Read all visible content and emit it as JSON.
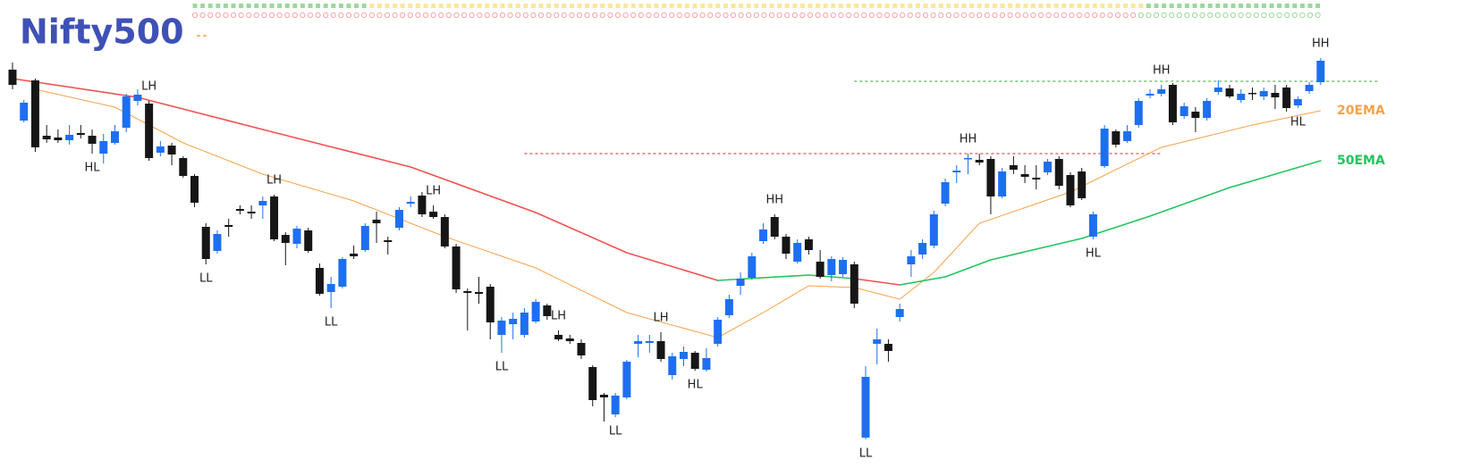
{
  "chart_data": {
    "type": "candlestick",
    "title": "Nifty500",
    "ylim": [
      0,
      500
    ],
    "up_color": "#1e6ff0",
    "down_color": "#161616",
    "open": [
      422,
      365,
      410,
      348,
      346,
      343,
      351,
      348,
      328,
      340,
      357,
      387,
      384,
      329,
      337,
      323,
      303,
      246,
      219,
      248,
      266,
      263,
      270,
      280,
      237,
      227,
      242,
      200,
      173,
      179,
      216,
      220,
      254,
      231,
      245,
      272,
      281,
      263,
      257,
      224,
      174,
      173,
      179,
      125,
      137,
      125,
      140,
      158,
      125,
      121,
      116,
      89,
      58,
      36,
      55,
      115,
      116,
      118,
      80,
      98,
      105,
      86,
      115,
      147,
      180,
      189,
      230,
      257,
      235,
      207,
      232,
      207,
      192,
      193,
      204,
      10,
      115,
      115,
      145,
      204,
      215,
      225,
      272,
      307,
      322,
      321,
      322,
      280,
      315,
      305,
      301,
      307,
      322,
      304,
      308,
      235,
      314,
      353,
      342,
      360,
      393,
      395,
      405,
      370,
      375,
      368,
      397,
      401,
      388,
      396,
      392,
      396,
      402,
      382,
      398,
      408
    ],
    "high": [
      430,
      388,
      412,
      360,
      355,
      360,
      360,
      355,
      350,
      360,
      395,
      400,
      387,
      342,
      340,
      325,
      305,
      250,
      242,
      255,
      270,
      270,
      280,
      282,
      240,
      247,
      245,
      205,
      190,
      212,
      225,
      250,
      263,
      235,
      268,
      280,
      285,
      270,
      260,
      227,
      177,
      190,
      182,
      145,
      150,
      155,
      165,
      160,
      130,
      125,
      120,
      91,
      60,
      60,
      97,
      125,
      125,
      128,
      105,
      112,
      107,
      110,
      145,
      170,
      195,
      217,
      250,
      260,
      238,
      232,
      235,
      220,
      213,
      212,
      207,
      90,
      132,
      120,
      160,
      220,
      232,
      264,
      300,
      315,
      328,
      328,
      325,
      312,
      325,
      315,
      315,
      322,
      325,
      307,
      312,
      263,
      360,
      355,
      360,
      390,
      400,
      405,
      407,
      385,
      380,
      390,
      410,
      405,
      400,
      402,
      402,
      405,
      405,
      392,
      408,
      435
    ],
    "low": [
      400,
      363,
      330,
      340,
      340,
      338,
      345,
      328,
      317,
      338,
      352,
      382,
      320,
      325,
      315,
      301,
      268,
      204,
      216,
      235,
      260,
      255,
      255,
      230,
      203,
      222,
      217,
      169,
      155,
      177,
      210,
      218,
      228,
      215,
      242,
      268,
      257,
      255,
      222,
      172,
      130,
      160,
      120,
      105,
      120,
      122,
      138,
      142,
      118,
      115,
      98,
      45,
      28,
      33,
      53,
      100,
      105,
      95,
      75,
      90,
      85,
      84,
      112,
      144,
      170,
      187,
      227,
      232,
      210,
      205,
      215,
      188,
      185,
      190,
      155,
      8,
      92,
      95,
      140,
      190,
      210,
      222,
      269,
      295,
      305,
      315,
      260,
      278,
      305,
      295,
      288,
      304,
      288,
      268,
      276,
      232,
      312,
      335,
      340,
      357,
      390,
      392,
      360,
      367,
      352,
      365,
      394,
      390,
      385,
      388,
      388,
      378,
      375,
      379,
      395,
      405
    ],
    "close": [
      405,
      385,
      335,
      344,
      343,
      349,
      349,
      339,
      342,
      353,
      392,
      394,
      323,
      336,
      327,
      303,
      273,
      210,
      238,
      246,
      264,
      261,
      275,
      232,
      228,
      244,
      219,
      171,
      182,
      210,
      213,
      247,
      250,
      229,
      265,
      274,
      260,
      257,
      224,
      176,
      172,
      171,
      139,
      141,
      143,
      150,
      162,
      146,
      120,
      118,
      102,
      52,
      55,
      57,
      95,
      118,
      118,
      98,
      101,
      106,
      87,
      99,
      142,
      165,
      188,
      213,
      243,
      235,
      216,
      228,
      220,
      190,
      210,
      209,
      160,
      78,
      120,
      107,
      154,
      213,
      228,
      260,
      296,
      309,
      323,
      318,
      280,
      308,
      310,
      302,
      299,
      319,
      292,
      270,
      278,
      260,
      356,
      338,
      353,
      387,
      395,
      400,
      363,
      381,
      368,
      387,
      402,
      392,
      395,
      395,
      398,
      391,
      379,
      389,
      405,
      432
    ],
    "series": [
      {
        "name": "20EMA",
        "color": "#f7a24a",
        "x": [
          2,
          9,
          15,
          22,
          30,
          38,
          46,
          54,
          62,
          66,
          70,
          74,
          78,
          81,
          85,
          93,
          101,
          109,
          115
        ],
        "values": [
          400,
          380,
          340,
          305,
          275,
          235,
          200,
          150,
          122,
          150,
          180,
          178,
          165,
          195,
          250,
          285,
          335,
          360,
          376
        ]
      },
      {
        "name": "50EMA",
        "color": "#22c55e",
        "below_color": "#f05252",
        "x": [
          0,
          11,
          22,
          35,
          46,
          54,
          62,
          70,
          74,
          78,
          82,
          86,
          94,
          100,
          107,
          115
        ],
        "values": [
          412,
          391,
          355,
          313,
          262,
          217,
          186,
          192,
          188,
          181,
          190,
          209,
          233,
          258,
          290,
          320
        ]
      }
    ],
    "swings": [
      {
        "label": "LH",
        "at": 12,
        "side": "above"
      },
      {
        "label": "HL",
        "at": 7,
        "side": "below"
      },
      {
        "label": "LL",
        "at": 17,
        "side": "below"
      },
      {
        "label": "LH",
        "at": 23,
        "side": "above"
      },
      {
        "label": "LL",
        "at": 28,
        "side": "below"
      },
      {
        "label": "LH",
        "at": 37,
        "side": "above"
      },
      {
        "label": "LL",
        "at": 43,
        "side": "below"
      },
      {
        "label": "LH",
        "at": 48,
        "side": "above"
      },
      {
        "label": "LL",
        "at": 53,
        "side": "below"
      },
      {
        "label": "LH",
        "at": 57,
        "side": "above"
      },
      {
        "label": "HL",
        "at": 60,
        "side": "below"
      },
      {
        "label": "HH",
        "at": 67,
        "side": "above"
      },
      {
        "label": "LL",
        "at": 75,
        "side": "below"
      },
      {
        "label": "HH",
        "at": 84,
        "side": "above"
      },
      {
        "label": "HL",
        "at": 95,
        "side": "below"
      },
      {
        "label": "HH",
        "at": 101,
        "side": "above"
      },
      {
        "label": "HL",
        "at": 113,
        "side": "below"
      },
      {
        "label": "HH",
        "at": 115,
        "side": "above"
      }
    ],
    "levels": [
      {
        "value": 328,
        "from": 45,
        "to": 101,
        "color": "#e05555"
      },
      {
        "value": 409,
        "from": 74,
        "to": 120,
        "color": "#5cb85c"
      }
    ]
  }
}
